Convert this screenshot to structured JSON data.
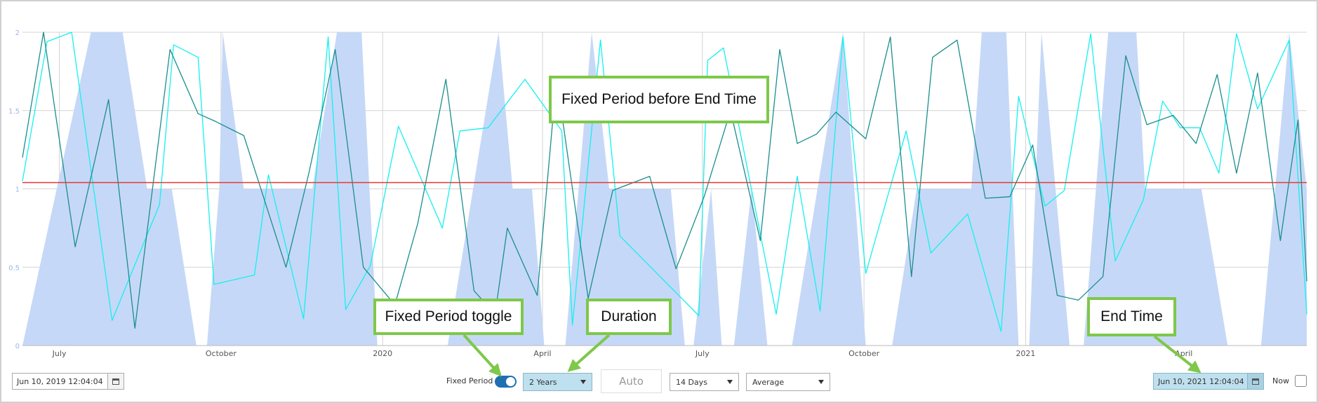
{
  "chart_data": {
    "type": "line",
    "title": "",
    "xlabel": "",
    "ylabel": "",
    "ylim": [
      0,
      2
    ],
    "x_range": [
      "2019-06-10",
      "2021-06-10"
    ],
    "y_ticks": [
      "0",
      "0.5",
      "1",
      "1.5",
      "2"
    ],
    "x_ticks": [
      {
        "date": "2019-07-01",
        "label": "July"
      },
      {
        "date": "2019-10-01",
        "label": "October"
      },
      {
        "date": "2020-01-01",
        "label": "2020"
      },
      {
        "date": "2020-04-01",
        "label": "April"
      },
      {
        "date": "2020-07-01",
        "label": "July"
      },
      {
        "date": "2020-10-01",
        "label": "October"
      },
      {
        "date": "2021-01-01",
        "label": "2021"
      },
      {
        "date": "2021-04-01",
        "label": "April"
      }
    ],
    "grid": true,
    "threshold": {
      "value": 1.04,
      "color": "#e53935"
    },
    "series": [
      {
        "kind": "area",
        "color": "#c6d8f7",
        "points": [
          [
            "2019-06-10",
            0
          ],
          [
            "2019-07-19",
            2
          ],
          [
            "2019-08-06",
            2
          ],
          [
            "2019-08-20",
            1
          ],
          [
            "2019-09-03",
            1
          ],
          [
            "2019-09-17",
            0
          ],
          [
            "2019-09-23",
            0
          ],
          [
            "2019-09-30",
            1
          ],
          [
            "2019-10-02",
            2
          ],
          [
            "2019-10-14",
            1
          ],
          [
            "2019-11-22",
            1
          ],
          [
            "2019-12-06",
            2
          ],
          [
            "2019-12-20",
            2
          ],
          [
            "2019-12-29",
            0
          ],
          [
            "2020-02-07",
            0
          ],
          [
            "2020-03-07",
            2
          ],
          [
            "2020-03-15",
            1
          ],
          [
            "2020-03-26",
            1
          ],
          [
            "2020-04-02",
            0
          ],
          [
            "2020-04-14",
            0
          ],
          [
            "2020-04-29",
            2
          ],
          [
            "2020-05-09",
            1
          ],
          [
            "2020-06-13",
            1
          ],
          [
            "2020-06-21",
            0
          ],
          [
            "2020-06-26",
            0
          ],
          [
            "2020-07-06",
            1
          ],
          [
            "2020-07-12",
            0
          ],
          [
            "2020-07-19",
            0
          ],
          [
            "2020-07-29",
            1
          ],
          [
            "2020-08-07",
            0
          ],
          [
            "2020-08-21",
            0
          ],
          [
            "2020-09-19",
            2
          ],
          [
            "2020-10-02",
            0
          ],
          [
            "2020-10-17",
            0
          ],
          [
            "2020-10-31",
            1
          ],
          [
            "2020-12-01",
            1
          ],
          [
            "2020-12-07",
            2
          ],
          [
            "2020-12-21",
            2
          ],
          [
            "2020-12-28",
            0
          ],
          [
            "2021-01-03",
            0
          ],
          [
            "2021-01-10",
            2
          ],
          [
            "2021-01-26",
            0
          ],
          [
            "2021-02-03",
            0
          ],
          [
            "2021-02-17",
            2
          ],
          [
            "2021-03-05",
            2
          ],
          [
            "2021-03-10",
            1
          ],
          [
            "2021-04-11",
            1
          ],
          [
            "2021-04-26",
            0
          ],
          [
            "2021-05-15",
            0
          ],
          [
            "2021-05-31",
            2
          ],
          [
            "2021-06-10",
            1
          ]
        ]
      },
      {
        "kind": "line",
        "color": "#15f0f0",
        "points": [
          [
            "2019-06-10",
            1.05
          ],
          [
            "2019-06-24",
            1.94
          ],
          [
            "2019-07-08",
            2.0
          ],
          [
            "2019-07-31",
            0.16
          ],
          [
            "2019-08-27",
            0.9
          ],
          [
            "2019-09-04",
            1.92
          ],
          [
            "2019-09-18",
            1.84
          ],
          [
            "2019-09-27",
            0.39
          ],
          [
            "2019-10-20",
            0.45
          ],
          [
            "2019-10-28",
            1.09
          ],
          [
            "2019-11-17",
            0.17
          ],
          [
            "2019-12-01",
            1.97
          ],
          [
            "2019-12-11",
            0.23
          ],
          [
            "2019-12-25",
            0.51
          ],
          [
            "2020-01-10",
            1.4
          ],
          [
            "2020-02-04",
            0.75
          ],
          [
            "2020-02-14",
            1.37
          ],
          [
            "2020-03-01",
            1.39
          ],
          [
            "2020-03-22",
            1.7
          ],
          [
            "2020-04-12",
            1.37
          ],
          [
            "2020-04-18",
            0.13
          ],
          [
            "2020-05-04",
            1.95
          ],
          [
            "2020-05-15",
            0.7
          ],
          [
            "2020-06-29",
            0.19
          ],
          [
            "2020-07-04",
            1.82
          ],
          [
            "2020-07-13",
            1.9
          ],
          [
            "2020-08-12",
            0.2
          ],
          [
            "2020-08-24",
            1.08
          ],
          [
            "2020-09-06",
            0.22
          ],
          [
            "2020-09-19",
            1.97
          ],
          [
            "2020-10-02",
            0.46
          ],
          [
            "2020-10-25",
            1.37
          ],
          [
            "2020-11-08",
            0.59
          ],
          [
            "2020-11-29",
            0.84
          ],
          [
            "2020-12-18",
            0.09
          ],
          [
            "2020-12-28",
            1.59
          ],
          [
            "2021-01-12",
            0.89
          ],
          [
            "2021-01-23",
            0.99
          ],
          [
            "2021-02-07",
            1.99
          ],
          [
            "2021-02-21",
            0.54
          ],
          [
            "2021-03-09",
            0.93
          ],
          [
            "2021-03-20",
            1.56
          ],
          [
            "2021-03-30",
            1.39
          ],
          [
            "2021-04-10",
            1.39
          ],
          [
            "2021-04-21",
            1.1
          ],
          [
            "2021-05-01",
            1.99
          ],
          [
            "2021-05-13",
            1.51
          ],
          [
            "2021-05-31",
            1.95
          ],
          [
            "2021-06-10",
            0.2
          ]
        ]
      },
      {
        "kind": "line",
        "color": "#1a8e8e",
        "points": [
          [
            "2019-06-10",
            1.2
          ],
          [
            "2019-06-22",
            2.0
          ],
          [
            "2019-07-10",
            0.63
          ],
          [
            "2019-07-29",
            1.57
          ],
          [
            "2019-08-13",
            0.11
          ],
          [
            "2019-09-02",
            1.89
          ],
          [
            "2019-09-18",
            1.48
          ],
          [
            "2019-09-28",
            1.43
          ],
          [
            "2019-10-14",
            1.34
          ],
          [
            "2019-11-07",
            0.5
          ],
          [
            "2019-11-20",
            1.1
          ],
          [
            "2019-12-05",
            1.89
          ],
          [
            "2019-12-21",
            0.5
          ],
          [
            "2020-01-08",
            0.26
          ],
          [
            "2020-01-21",
            0.78
          ],
          [
            "2020-02-06",
            1.7
          ],
          [
            "2020-02-22",
            0.35
          ],
          [
            "2020-03-05",
            0.2
          ],
          [
            "2020-03-12",
            0.75
          ],
          [
            "2020-03-29",
            0.32
          ],
          [
            "2020-04-09",
            1.71
          ],
          [
            "2020-04-27",
            0.3
          ],
          [
            "2020-05-11",
            0.99
          ],
          [
            "2020-06-01",
            1.08
          ],
          [
            "2020-06-16",
            0.49
          ],
          [
            "2020-07-02",
            0.95
          ],
          [
            "2020-07-17",
            1.5
          ],
          [
            "2020-08-03",
            0.67
          ],
          [
            "2020-08-14",
            1.89
          ],
          [
            "2020-08-24",
            1.29
          ],
          [
            "2020-09-04",
            1.35
          ],
          [
            "2020-09-15",
            1.49
          ],
          [
            "2020-10-02",
            1.32
          ],
          [
            "2020-10-16",
            1.97
          ],
          [
            "2020-10-28",
            0.44
          ],
          [
            "2020-11-09",
            1.84
          ],
          [
            "2020-11-23",
            1.95
          ],
          [
            "2020-12-09",
            0.94
          ],
          [
            "2020-12-23",
            0.95
          ],
          [
            "2021-01-05",
            1.28
          ],
          [
            "2021-01-19",
            0.32
          ],
          [
            "2021-01-31",
            0.29
          ],
          [
            "2021-02-14",
            0.44
          ],
          [
            "2021-02-27",
            1.85
          ],
          [
            "2021-03-11",
            1.41
          ],
          [
            "2021-03-26",
            1.47
          ],
          [
            "2021-04-08",
            1.29
          ],
          [
            "2021-04-20",
            1.73
          ],
          [
            "2021-05-01",
            1.1
          ],
          [
            "2021-05-13",
            1.74
          ],
          [
            "2021-05-26",
            0.67
          ],
          [
            "2021-06-05",
            1.44
          ],
          [
            "2021-06-10",
            0.41
          ]
        ]
      }
    ]
  },
  "controls": {
    "start_time": "Jun 10, 2019 12:04:04",
    "fixed_period_label": "Fixed Period",
    "fixed_period_on": true,
    "duration": "2 Years",
    "auto_label": "Auto",
    "interval": "14 Days",
    "aggregate": "Average",
    "end_time": "Jun 10, 2021 12:04:04",
    "now_label": "Now",
    "now_checked": false
  },
  "callouts": {
    "fixed_period_before_end": "Fixed Period before End Time",
    "fixed_period_toggle": "Fixed Period toggle",
    "duration": "Duration",
    "end_time": "End Time"
  },
  "colors": {
    "callout_border": "#7ec84a",
    "highlight": "#bfe0ee",
    "toggle": "#1f6fb2"
  }
}
